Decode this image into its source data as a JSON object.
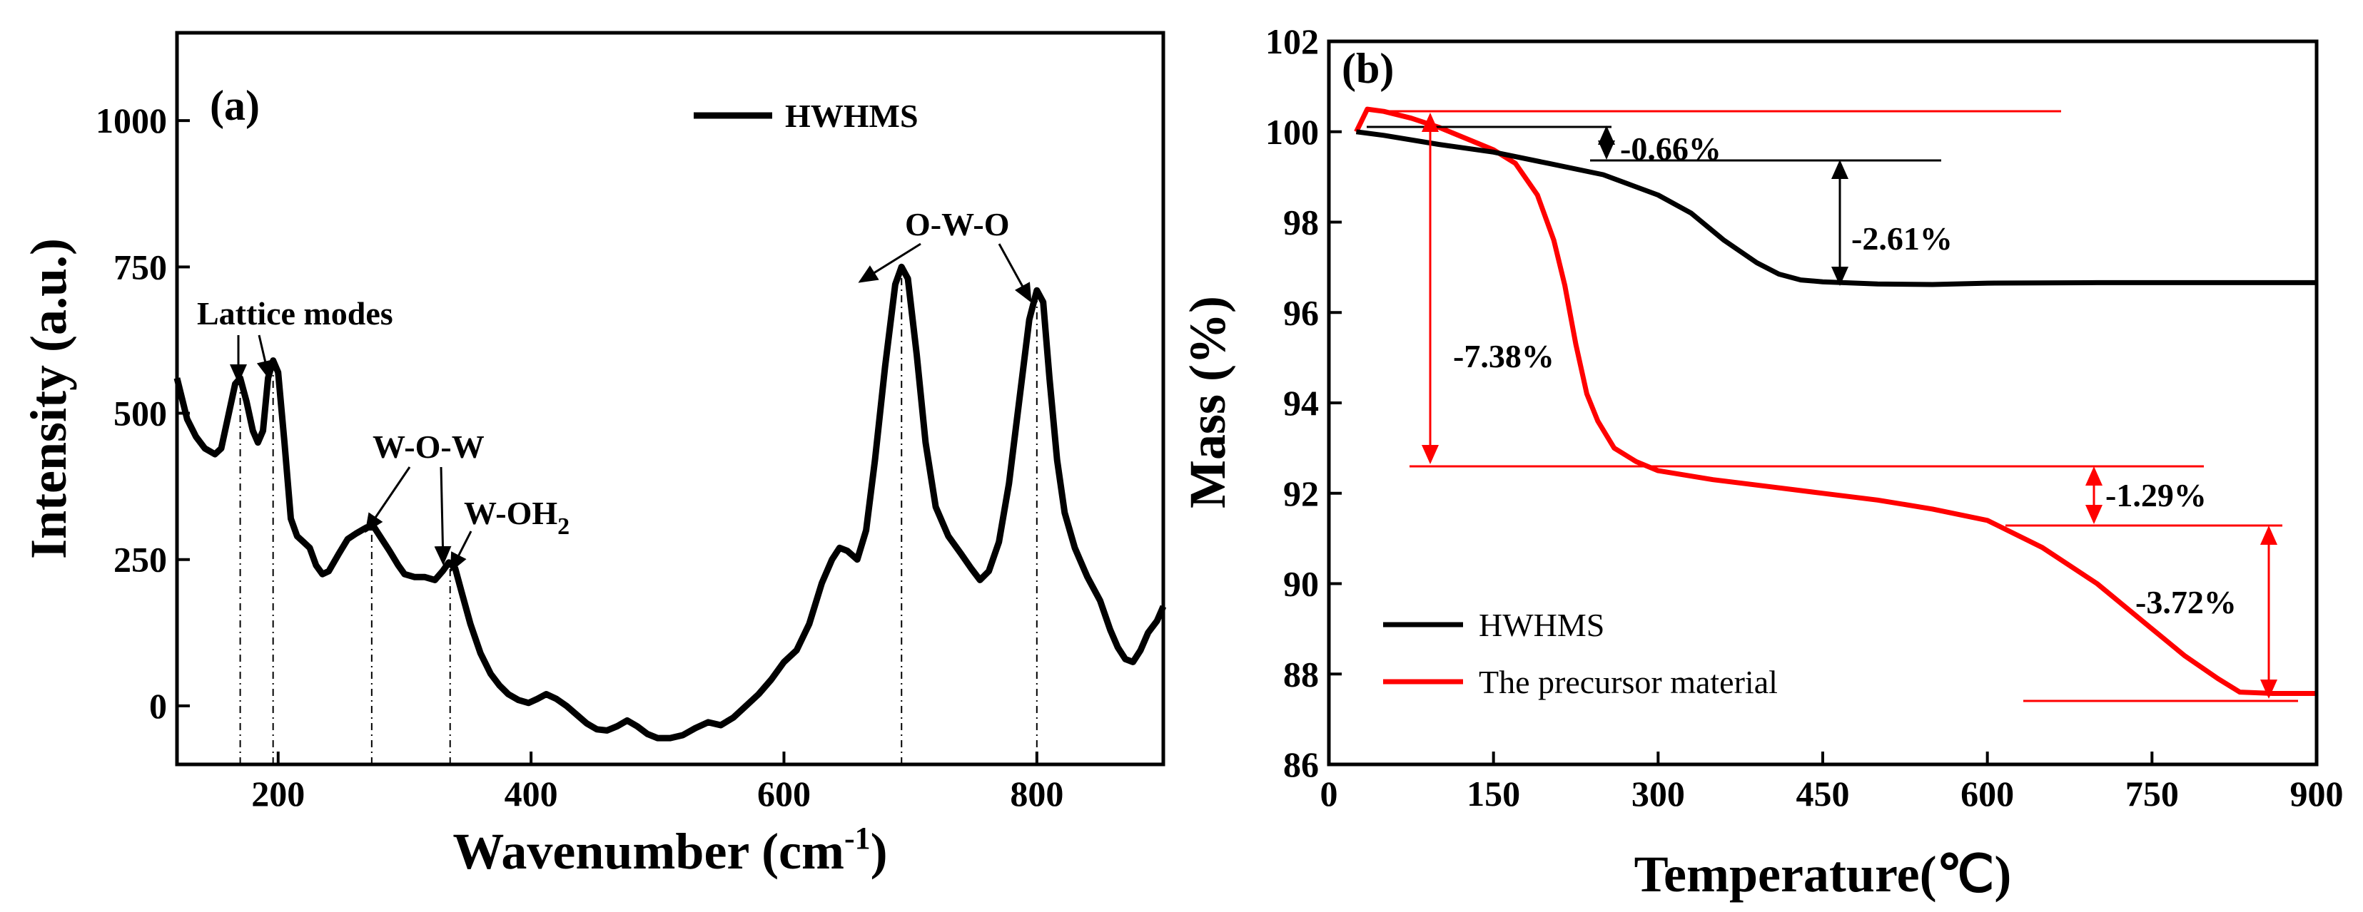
{
  "chart_data": [
    {
      "type": "line",
      "panel_label": "(a)",
      "xlabel": "Wavenumber (cm",
      "xlabel_sup": "-1",
      "xlabel_end": ")",
      "ylabel": "Intensity (a.u.)",
      "xlim": [
        120,
        900
      ],
      "ylim": [
        -100,
        1150
      ],
      "xticks": [
        200,
        400,
        600,
        800
      ],
      "yticks": [
        0,
        250,
        500,
        750,
        1000
      ],
      "series": [
        {
          "name": "HWHMS",
          "color": "#000000",
          "points": [
            [
              120,
              560
            ],
            [
              128,
              490
            ],
            [
              135,
              460
            ],
            [
              142,
              440
            ],
            [
              150,
              430
            ],
            [
              155,
              440
            ],
            [
              160,
              490
            ],
            [
              166,
              550
            ],
            [
              170,
              560
            ],
            [
              175,
              520
            ],
            [
              180,
              470
            ],
            [
              184,
              450
            ],
            [
              188,
              470
            ],
            [
              192,
              560
            ],
            [
              196,
              590
            ],
            [
              200,
              570
            ],
            [
              205,
              450
            ],
            [
              210,
              320
            ],
            [
              215,
              290
            ],
            [
              220,
              280
            ],
            [
              225,
              270
            ],
            [
              230,
              240
            ],
            [
              235,
              225
            ],
            [
              240,
              230
            ],
            [
              248,
              260
            ],
            [
              255,
              285
            ],
            [
              262,
              295
            ],
            [
              270,
              305
            ],
            [
              276,
              305
            ],
            [
              282,
              285
            ],
            [
              288,
              265
            ],
            [
              295,
              240
            ],
            [
              300,
              225
            ],
            [
              308,
              220
            ],
            [
              316,
              220
            ],
            [
              324,
              215
            ],
            [
              330,
              230
            ],
            [
              335,
              245
            ],
            [
              340,
              235
            ],
            [
              345,
              195
            ],
            [
              352,
              140
            ],
            [
              360,
              90
            ],
            [
              368,
              55
            ],
            [
              375,
              35
            ],
            [
              382,
              20
            ],
            [
              390,
              10
            ],
            [
              398,
              5
            ],
            [
              405,
              12
            ],
            [
              412,
              20
            ],
            [
              420,
              12
            ],
            [
              428,
              0
            ],
            [
              436,
              -15
            ],
            [
              444,
              -30
            ],
            [
              452,
              -40
            ],
            [
              460,
              -42
            ],
            [
              468,
              -35
            ],
            [
              476,
              -25
            ],
            [
              484,
              -35
            ],
            [
              492,
              -48
            ],
            [
              500,
              -55
            ],
            [
              510,
              -55
            ],
            [
              520,
              -50
            ],
            [
              530,
              -38
            ],
            [
              540,
              -28
            ],
            [
              550,
              -33
            ],
            [
              560,
              -20
            ],
            [
              570,
              0
            ],
            [
              580,
              20
            ],
            [
              590,
              45
            ],
            [
              600,
              75
            ],
            [
              610,
              95
            ],
            [
              620,
              140
            ],
            [
              630,
              210
            ],
            [
              638,
              250
            ],
            [
              644,
              270
            ],
            [
              650,
              265
            ],
            [
              658,
              250
            ],
            [
              665,
              300
            ],
            [
              672,
              420
            ],
            [
              680,
              580
            ],
            [
              688,
              720
            ],
            [
              693,
              750
            ],
            [
              698,
              730
            ],
            [
              705,
              600
            ],
            [
              712,
              450
            ],
            [
              720,
              340
            ],
            [
              730,
              290
            ],
            [
              740,
              260
            ],
            [
              748,
              235
            ],
            [
              755,
              215
            ],
            [
              762,
              230
            ],
            [
              770,
              280
            ],
            [
              778,
              380
            ],
            [
              786,
              520
            ],
            [
              794,
              660
            ],
            [
              800,
              710
            ],
            [
              805,
              690
            ],
            [
              810,
              560
            ],
            [
              816,
              420
            ],
            [
              822,
              330
            ],
            [
              830,
              270
            ],
            [
              840,
              220
            ],
            [
              850,
              180
            ],
            [
              858,
              130
            ],
            [
              864,
              100
            ],
            [
              870,
              80
            ],
            [
              876,
              75
            ],
            [
              882,
              95
            ],
            [
              888,
              125
            ],
            [
              895,
              145
            ],
            [
              900,
              170
            ]
          ]
        }
      ],
      "legend": [
        "HWHMS"
      ],
      "annotations": [
        {
          "text": "Lattice modes"
        },
        {
          "text": "W-O-W"
        },
        {
          "text": "W-OH",
          "sub": "2"
        },
        {
          "text": "O-W-O"
        }
      ],
      "dashed_lines_at_x": [
        170,
        196,
        274,
        336,
        693,
        800
      ]
    },
    {
      "type": "line",
      "panel_label": "(b)",
      "xlabel": "Temperature(℃)",
      "ylabel": "Mass (%)",
      "xlim": [
        0,
        900
      ],
      "ylim": [
        86,
        102
      ],
      "xticks": [
        0,
        150,
        300,
        450,
        600,
        750,
        900
      ],
      "yticks": [
        86,
        88,
        90,
        92,
        94,
        96,
        98,
        100,
        102
      ],
      "series": [
        {
          "name": "HWHMS",
          "color": "#000000",
          "points": [
            [
              25,
              100
            ],
            [
              50,
              99.92
            ],
            [
              100,
              99.72
            ],
            [
              150,
              99.55
            ],
            [
              200,
              99.3
            ],
            [
              250,
              99.05
            ],
            [
              300,
              98.6
            ],
            [
              330,
              98.2
            ],
            [
              360,
              97.6
            ],
            [
              390,
              97.1
            ],
            [
              410,
              96.85
            ],
            [
              430,
              96.72
            ],
            [
              450,
              96.68
            ],
            [
              500,
              96.63
            ],
            [
              550,
              96.62
            ],
            [
              600,
              96.65
            ],
            [
              700,
              96.66
            ],
            [
              800,
              96.66
            ],
            [
              900,
              96.66
            ]
          ]
        },
        {
          "name": "The precursor material",
          "color": "#ff0000",
          "points": [
            [
              25,
              100.0
            ],
            [
              35,
              100.5
            ],
            [
              50,
              100.45
            ],
            [
              75,
              100.3
            ],
            [
              100,
              100.1
            ],
            [
              130,
              99.8
            ],
            [
              150,
              99.6
            ],
            [
              170,
              99.3
            ],
            [
              190,
              98.6
            ],
            [
              205,
              97.6
            ],
            [
              215,
              96.6
            ],
            [
              225,
              95.3
            ],
            [
              235,
              94.2
            ],
            [
              245,
              93.6
            ],
            [
              260,
              93.0
            ],
            [
              280,
              92.7
            ],
            [
              300,
              92.5
            ],
            [
              350,
              92.3
            ],
            [
              400,
              92.15
            ],
            [
              450,
              92.0
            ],
            [
              500,
              91.85
            ],
            [
              550,
              91.65
            ],
            [
              600,
              91.4
            ],
            [
              650,
              90.8
            ],
            [
              700,
              90.0
            ],
            [
              750,
              89.0
            ],
            [
              780,
              88.4
            ],
            [
              810,
              87.9
            ],
            [
              830,
              87.6
            ],
            [
              860,
              87.57
            ],
            [
              900,
              87.57
            ]
          ]
        }
      ],
      "legend": [
        "HWHMS",
        "The precursor material"
      ],
      "annotations": [
        {
          "text": "-0.66%"
        },
        {
          "text": "-2.61%"
        },
        {
          "text": "-7.38%"
        },
        {
          "text": "-1.29%"
        },
        {
          "text": "-3.72%"
        }
      ]
    }
  ]
}
